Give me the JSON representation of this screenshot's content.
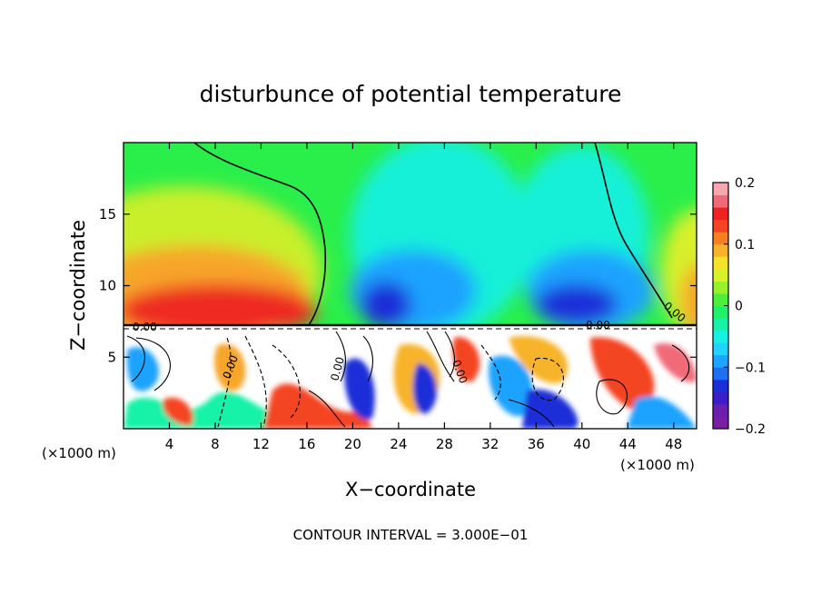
{
  "chart_data": {
    "type": "heatmap",
    "title": "disturbunce of potential temperature",
    "xlabel": "X−coordinate",
    "ylabel": "Z−coordinate",
    "x_unit": "(×1000 m)",
    "y_unit": "(×1000 m)",
    "xlim": [
      0,
      50
    ],
    "ylim": [
      0,
      20
    ],
    "x_ticks": [
      4,
      8,
      12,
      16,
      20,
      24,
      28,
      32,
      36,
      40,
      44,
      48
    ],
    "y_ticks": [
      5,
      10,
      15
    ],
    "colorbar": {
      "range": [
        -0.2,
        0.2
      ],
      "tick_values": [
        0.2,
        0.1,
        0,
        -0.1,
        -0.2
      ],
      "tick_labels": [
        "0.2",
        "0.1",
        "0",
        "−0.1",
        "−0.2"
      ],
      "colors": [
        "#7a1fa2",
        "#6a1fb0",
        "#3a1fc8",
        "#1a2fd8",
        "#1f6ff2",
        "#1ea3ff",
        "#22d3ff",
        "#19f0e4",
        "#17f2a8",
        "#20f06a",
        "#4cf03a",
        "#9af02a",
        "#d8f22a",
        "#f5e22a",
        "#f7b42a",
        "#f77e22",
        "#f44422",
        "#ee2222",
        "#f06a78",
        "#f7a7b0"
      ]
    },
    "contour_interval": "CONTOUR INTERVAL = 3.000E−01",
    "contour_labels": [
      "0.00",
      "0.00",
      "0.00",
      "0.00",
      "0.00",
      "0.00"
    ],
    "field_summary": {
      "upper_layer_z": [
        7.3,
        20
      ],
      "lower_layer_z": [
        0,
        7.3
      ],
      "warm_lobes_x": [
        [
          0,
          16
        ],
        [
          46,
          50
        ]
      ],
      "cold_lobes_x": [
        [
          18,
          27
        ],
        [
          34,
          45
        ]
      ]
    }
  }
}
